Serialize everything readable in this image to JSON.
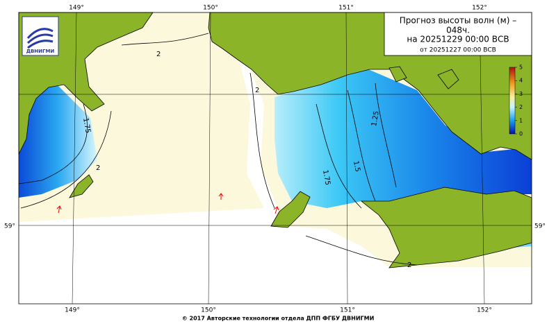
{
  "header": {
    "title_line1": "Прогноз высоты волн (м) –",
    "title_line2": "048ч.",
    "title_line3": "на 20251229 00:00 ВСВ",
    "issued": "от 20251227 00:00 ВСВ"
  },
  "logo": {
    "text": "ДВНИГМИ"
  },
  "longitude_labels": [
    "149°",
    "150°",
    "151°",
    "152°"
  ],
  "latitude_labels": [
    "59°"
  ],
  "colorbar": {
    "ticks": [
      0,
      1,
      2,
      3,
      4,
      5
    ]
  },
  "contour_labels": [
    2,
    1.75,
    2,
    2,
    1.75,
    1.5,
    1.25,
    2
  ],
  "footer": "© 2017 Авторские технологии отдела ДПП ФГБУ ДВНИГМИ"
}
